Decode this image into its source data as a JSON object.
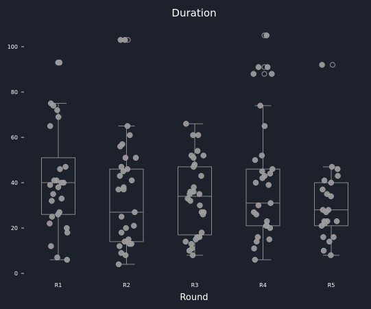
{
  "chart_data": {
    "type": "box",
    "title": "Duration",
    "xlabel": "Round",
    "ylabel": "",
    "ylim": [
      -3,
      110
    ],
    "yticks": [
      0,
      20,
      40,
      60,
      80,
      100
    ],
    "ytick_labels": [
      "0",
      "20",
      "40",
      "60",
      "80",
      "100"
    ],
    "grid": false,
    "colors": {
      "background": "#1c212c",
      "box": "#8a8a8a",
      "point": "#9a9a9a",
      "text": "#ffffff"
    },
    "categories": [
      "R1",
      "R2",
      "R3",
      "R4",
      "R5"
    ],
    "boxes": [
      {
        "name": "R1",
        "whislo": 6,
        "q1": 26,
        "med": 40,
        "q3": 51,
        "whishi": 75,
        "fliers": [
          93
        ]
      },
      {
        "name": "R2",
        "whislo": 4,
        "q1": 14,
        "med": 27,
        "q3": 46,
        "whishi": 65,
        "fliers": [
          103
        ]
      },
      {
        "name": "R3",
        "whislo": 8,
        "q1": 17,
        "med": 34,
        "q3": 47,
        "whishi": 66,
        "fliers": []
      },
      {
        "name": "R4",
        "whislo": 6,
        "q1": 21,
        "med": 31,
        "q3": 46,
        "whishi": 74,
        "fliers": [
          88,
          91,
          105
        ]
      },
      {
        "name": "R5",
        "whislo": 8,
        "q1": 21,
        "med": 28,
        "q3": 40,
        "whishi": 47,
        "fliers": [
          92
        ]
      }
    ],
    "points": [
      {
        "category": "R1",
        "values": [
          93,
          93,
          75,
          74,
          72,
          69,
          65,
          47,
          46,
          41,
          41,
          40,
          40,
          39,
          38,
          35,
          33,
          32,
          27,
          26,
          25,
          22,
          20,
          18,
          12,
          7,
          6
        ]
      },
      {
        "category": "R2",
        "values": [
          103,
          103,
          65,
          61,
          57,
          56,
          51,
          51,
          47,
          46,
          45,
          43,
          41,
          38,
          37,
          37,
          27,
          25,
          21,
          20,
          18,
          15,
          14,
          13,
          13,
          12,
          9,
          8,
          4
        ]
      },
      {
        "category": "R3",
        "values": [
          66,
          61,
          61,
          54,
          52,
          52,
          51,
          48,
          47,
          43,
          38,
          36,
          36,
          35,
          35,
          33,
          32,
          30,
          27,
          27,
          26,
          18,
          16,
          16,
          15,
          14,
          13,
          11,
          10,
          8
        ]
      },
      {
        "category": "R4",
        "values": [
          105,
          91,
          91,
          88,
          88,
          74,
          65,
          52,
          50,
          46,
          45,
          44,
          43,
          42,
          40,
          39,
          31,
          30,
          27,
          26,
          23,
          21,
          21,
          20,
          16,
          15,
          14,
          11,
          6
        ]
      },
      {
        "category": "R5",
        "values": [
          92,
          47,
          46,
          43,
          41,
          40,
          37,
          35,
          34,
          28,
          28,
          27,
          23,
          23,
          23,
          22,
          21,
          16,
          16,
          14,
          10,
          8
        ]
      }
    ]
  }
}
